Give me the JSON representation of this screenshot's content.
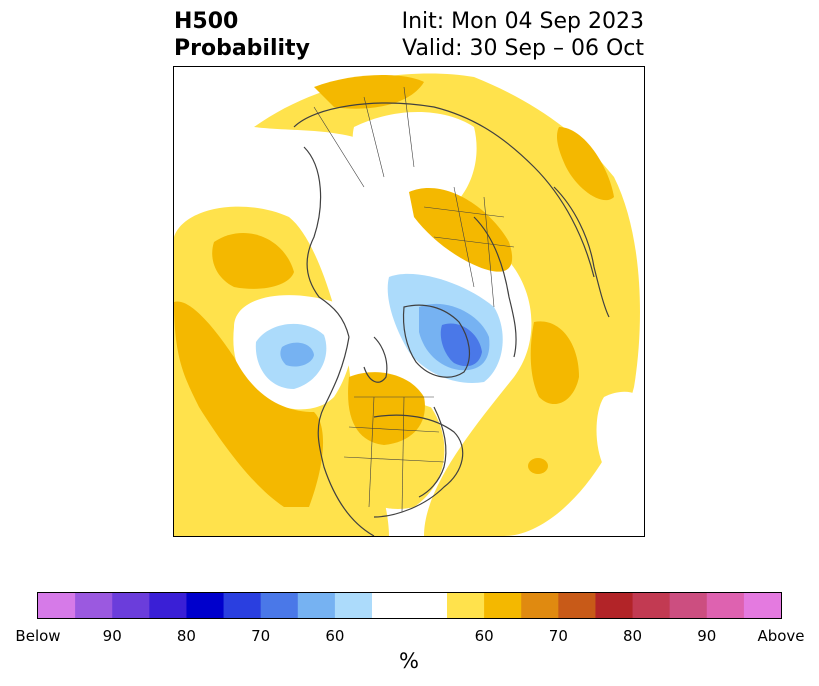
{
  "title": {
    "line1": "H500",
    "line2": "Probability"
  },
  "subtitle": {
    "init": "Init: Mon 04 Sep 2023",
    "valid": "Valid: 30 Sep – 06 Oct"
  },
  "colorbar": {
    "unit": "%",
    "tick_labels": [
      "Below",
      "90",
      "80",
      "70",
      "60",
      "60",
      "70",
      "80",
      "90",
      "Above"
    ],
    "colors": [
      "#d67ae8",
      "#9b59e0",
      "#6b3ddb",
      "#3a1fd6",
      "#0000cc",
      "#2a3fe0",
      "#4a78e8",
      "#76b2f2",
      "#acdbfb",
      "#ffffff",
      "#ffe24c",
      "#f4b800",
      "#e08a10",
      "#c85a18",
      "#b22428",
      "#c23a52",
      "#cc4e80",
      "#de62b0",
      "#e47ae0"
    ]
  },
  "map_colors": {
    "above_60": "#ffe24c",
    "above_70": "#f4b800",
    "below_60": "#acdbfb",
    "below_70": "#76b2f2",
    "below_80": "#4a78e8",
    "outline": "#404040"
  }
}
